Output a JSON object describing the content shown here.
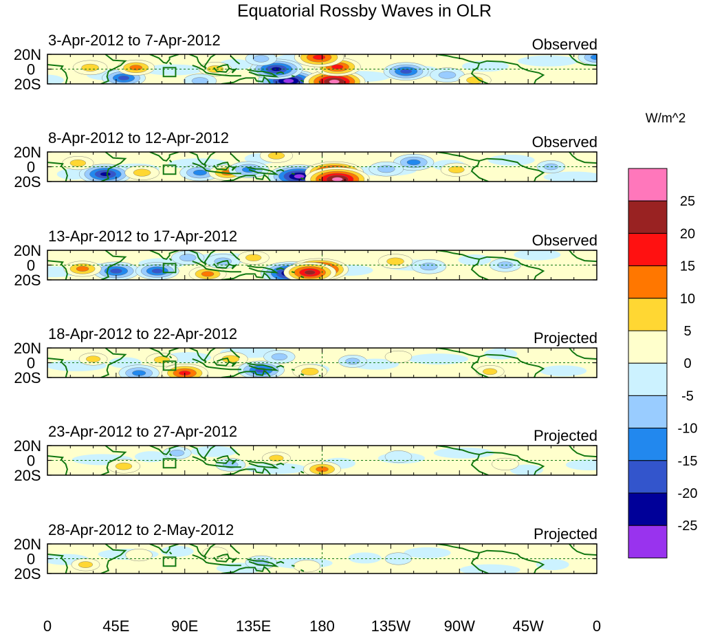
{
  "chart_data": {
    "type": "heatmap",
    "title": "Equatorial Rossby Waves in OLR",
    "units": "W/m^2",
    "x_ticks": [
      "0",
      "45E",
      "90E",
      "135E",
      "180",
      "135W",
      "90W",
      "45W",
      "0"
    ],
    "x_tick_values": [
      0,
      45,
      90,
      135,
      180,
      225,
      270,
      315,
      360
    ],
    "y_ticks": [
      "20N",
      "0",
      "20S"
    ],
    "y_tick_values": [
      20,
      0,
      -20
    ],
    "xlim": [
      0,
      360
    ],
    "ylim": [
      -20,
      20
    ],
    "reference_lines": [
      {
        "axis": "y",
        "value": 0,
        "style": "dashed"
      },
      {
        "axis": "x",
        "value": 180,
        "style": "dashed"
      }
    ],
    "colorbar": {
      "levels": [
        -25,
        -20,
        -15,
        -10,
        -5,
        0,
        5,
        10,
        15,
        20,
        25
      ],
      "labels": [
        "-25",
        "-20",
        "-15",
        "-10",
        "-5",
        "0",
        "5",
        "10",
        "15",
        "20",
        "25"
      ],
      "colors": [
        "#9933ee",
        "#000099",
        "#3355cc",
        "#2288ee",
        "#99ccff",
        "#ccf2ff",
        "#ffffcc",
        "#ffd733",
        "#ff7700",
        "#ff1111",
        "#992222",
        "#ff77bb"
      ]
    },
    "panels": [
      {
        "date_range": "3-Apr-2012 to 7-Apr-2012",
        "type": "Observed",
        "amp": 1.0,
        "features": [
          {
            "lon": 158,
            "lat": -16,
            "val": -28
          },
          {
            "lon": 150,
            "lat": 0,
            "val": -22
          },
          {
            "lon": 188,
            "lat": -17,
            "val": 28
          },
          {
            "lon": 190,
            "lat": 3,
            "val": 18
          },
          {
            "lon": 178,
            "lat": 16,
            "val": 20
          },
          {
            "lon": 235,
            "lat": -3,
            "val": -17
          },
          {
            "lon": 262,
            "lat": -8,
            "val": -10
          },
          {
            "lon": 50,
            "lat": -12,
            "val": -16
          },
          {
            "lon": 58,
            "lat": 2,
            "val": 12
          },
          {
            "lon": 28,
            "lat": 2,
            "val": 10
          },
          {
            "lon": 110,
            "lat": 0,
            "val": 9
          },
          {
            "lon": 100,
            "lat": -16,
            "val": -9
          },
          {
            "lon": 360,
            "lat": 16,
            "val": -12
          },
          {
            "lon": 280,
            "lat": -15,
            "val": 9
          },
          {
            "lon": 140,
            "lat": 14,
            "val": -8
          }
        ]
      },
      {
        "date_range": "8-Apr-2012 to 12-Apr-2012",
        "type": "Observed",
        "amp": 1.0,
        "features": [
          {
            "lon": 165,
            "lat": -13,
            "val": -28
          },
          {
            "lon": 188,
            "lat": -8,
            "val": 26
          },
          {
            "lon": 190,
            "lat": -17,
            "val": 30
          },
          {
            "lon": 38,
            "lat": -10,
            "val": -22
          },
          {
            "lon": 62,
            "lat": -8,
            "val": 10
          },
          {
            "lon": 100,
            "lat": -8,
            "val": -14
          },
          {
            "lon": 118,
            "lat": -8,
            "val": 12
          },
          {
            "lon": 132,
            "lat": -4,
            "val": -14
          },
          {
            "lon": 240,
            "lat": 6,
            "val": -14
          },
          {
            "lon": 268,
            "lat": -4,
            "val": 8
          },
          {
            "lon": 222,
            "lat": -3,
            "val": -10
          },
          {
            "lon": 150,
            "lat": 15,
            "val": 9
          },
          {
            "lon": 20,
            "lat": 5,
            "val": 8
          },
          {
            "lon": 330,
            "lat": 0,
            "val": -6
          }
        ]
      },
      {
        "date_range": "13-Apr-2012 to 17-Apr-2012",
        "type": "Observed",
        "amp": 1.0,
        "features": [
          {
            "lon": 160,
            "lat": -11,
            "val": -28
          },
          {
            "lon": 178,
            "lat": -6,
            "val": 26
          },
          {
            "lon": 172,
            "lat": -10,
            "val": 22
          },
          {
            "lon": 45,
            "lat": -8,
            "val": -18
          },
          {
            "lon": 72,
            "lat": -8,
            "val": -16
          },
          {
            "lon": 105,
            "lat": -12,
            "val": 12
          },
          {
            "lon": 115,
            "lat": 5,
            "val": -10
          },
          {
            "lon": 228,
            "lat": 5,
            "val": 10
          },
          {
            "lon": 250,
            "lat": -2,
            "val": -10
          },
          {
            "lon": 23,
            "lat": -5,
            "val": 12
          },
          {
            "lon": 135,
            "lat": 10,
            "val": 8
          },
          {
            "lon": 300,
            "lat": 0,
            "val": -8
          },
          {
            "lon": 92,
            "lat": 10,
            "val": -9
          }
        ]
      },
      {
        "date_range": "18-Apr-2012 to 22-Apr-2012",
        "type": "Projected",
        "amp": 0.7,
        "features": [
          {
            "lon": 140,
            "lat": -10,
            "val": -18
          },
          {
            "lon": 60,
            "lat": -14,
            "val": -14
          },
          {
            "lon": 90,
            "lat": -14,
            "val": 18
          },
          {
            "lon": 120,
            "lat": 5,
            "val": 10
          },
          {
            "lon": 152,
            "lat": 8,
            "val": -8
          },
          {
            "lon": 172,
            "lat": -12,
            "val": 10
          },
          {
            "lon": 200,
            "lat": 2,
            "val": -6
          },
          {
            "lon": 30,
            "lat": 5,
            "val": 6
          },
          {
            "lon": 290,
            "lat": -12,
            "val": 6
          },
          {
            "lon": 230,
            "lat": 8,
            "val": 5
          },
          {
            "lon": 75,
            "lat": 4,
            "val": 8
          }
        ]
      },
      {
        "date_range": "23-Apr-2012 to 27-Apr-2012",
        "type": "Projected",
        "amp": 0.45,
        "features": [
          {
            "lon": 180,
            "lat": -12,
            "val": 12
          },
          {
            "lon": 50,
            "lat": -8,
            "val": 9
          },
          {
            "lon": 120,
            "lat": -6,
            "val": -7
          },
          {
            "lon": 150,
            "lat": 3,
            "val": 6
          },
          {
            "lon": 85,
            "lat": 10,
            "val": -6
          },
          {
            "lon": 230,
            "lat": 5,
            "val": -5
          },
          {
            "lon": 300,
            "lat": -5,
            "val": 5
          }
        ]
      },
      {
        "date_range": "28-Apr-2012 to 2-May-2012",
        "type": "Projected",
        "amp": 0.35,
        "features": [
          {
            "lon": 140,
            "lat": -5,
            "val": -8
          },
          {
            "lon": 170,
            "lat": -10,
            "val": 5
          },
          {
            "lon": 60,
            "lat": 5,
            "val": 5
          },
          {
            "lon": 230,
            "lat": 0,
            "val": -5
          },
          {
            "lon": 110,
            "lat": 8,
            "val": 4
          },
          {
            "lon": 25,
            "lat": -8,
            "val": 6
          }
        ]
      }
    ]
  }
}
